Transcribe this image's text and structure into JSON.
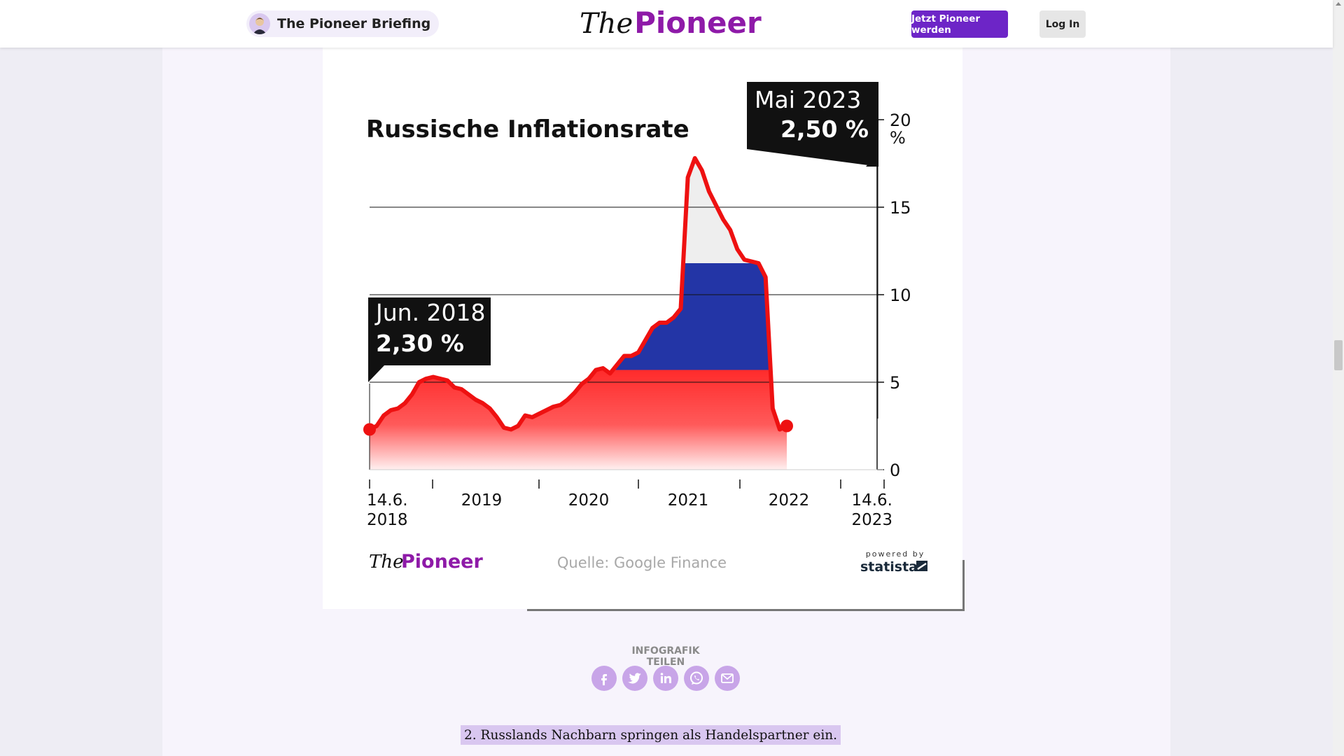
{
  "header": {
    "briefing_label": "The Pioneer Briefing",
    "logo_the": "The",
    "logo_pioneer": "Pioneer",
    "join_button": "Jetzt Pioneer werden",
    "login_button": "Log In"
  },
  "chart_data": {
    "type": "area",
    "title": "Russische Inflationsrate",
    "y_unit": "%",
    "ylim": [
      0,
      20
    ],
    "y_ticks": [
      "0",
      "5",
      "10",
      "15",
      "20"
    ],
    "x_ticks": [
      "14.6. 2018",
      "2019",
      "2020",
      "2021",
      "2022",
      "14.6. 2023"
    ],
    "grid": true,
    "legend": "none",
    "series": [
      {
        "x": [
          "2018-06",
          "2018-07",
          "2018-08",
          "2018-09",
          "2018-10",
          "2018-11",
          "2018-12",
          "2019-01",
          "2019-02",
          "2019-03",
          "2019-04",
          "2019-05",
          "2019-06",
          "2019-07",
          "2019-08",
          "2019-09",
          "2019-10",
          "2019-11",
          "2019-12",
          "2020-01",
          "2020-02",
          "2020-03",
          "2020-04",
          "2020-05",
          "2020-06",
          "2020-07",
          "2020-08",
          "2020-09",
          "2020-10",
          "2020-11",
          "2020-12",
          "2021-01",
          "2021-02",
          "2021-03",
          "2021-04",
          "2021-05",
          "2021-06",
          "2021-07",
          "2021-08",
          "2021-09",
          "2021-10",
          "2021-11",
          "2021-12",
          "2022-01",
          "2022-02",
          "2022-03",
          "2022-04",
          "2022-05",
          "2022-06",
          "2022-07",
          "2022-08",
          "2022-09",
          "2022-10",
          "2022-11",
          "2022-12",
          "2023-01",
          "2023-02",
          "2023-03",
          "2023-04",
          "2023-05"
        ],
        "values": [
          2.3,
          2.5,
          3.1,
          3.4,
          3.5,
          3.8,
          4.3,
          5.0,
          5.2,
          5.3,
          5.2,
          5.1,
          4.7,
          4.6,
          4.3,
          4.0,
          3.8,
          3.5,
          3.0,
          2.4,
          2.3,
          2.5,
          3.1,
          3.0,
          3.2,
          3.4,
          3.6,
          3.7,
          4.0,
          4.4,
          4.9,
          5.2,
          5.7,
          5.8,
          5.5,
          6.0,
          6.5,
          6.5,
          6.7,
          7.4,
          8.1,
          8.4,
          8.4,
          8.7,
          9.2,
          16.7,
          17.8,
          17.1,
          15.9,
          15.1,
          14.3,
          13.7,
          12.6,
          12.0,
          11.9,
          11.8,
          11.0,
          3.5,
          2.3,
          2.5
        ]
      }
    ],
    "annotations": [
      {
        "label": "Jun. 2018",
        "value": "2,30 %"
      },
      {
        "label": "Mai 2023",
        "value": "2,50 %"
      }
    ],
    "source": "Quelle: Google Finance",
    "powered_by": "powered by",
    "statista": "statista",
    "logo_the": "The",
    "logo_pioneer": "Pioneer",
    "colors": {
      "white": "#eeeeee",
      "blue": "#2335a6",
      "red": "#ff2b2b",
      "line": "#ee1111"
    }
  },
  "share": {
    "title": "INFOGRAFIK TEILEN",
    "icons": [
      "facebook-icon",
      "twitter-icon",
      "linkedin-icon",
      "whatsapp-icon",
      "mail-icon"
    ]
  },
  "paragraph": "2. Russlands Nachbarn springen als Handelspartner ein."
}
